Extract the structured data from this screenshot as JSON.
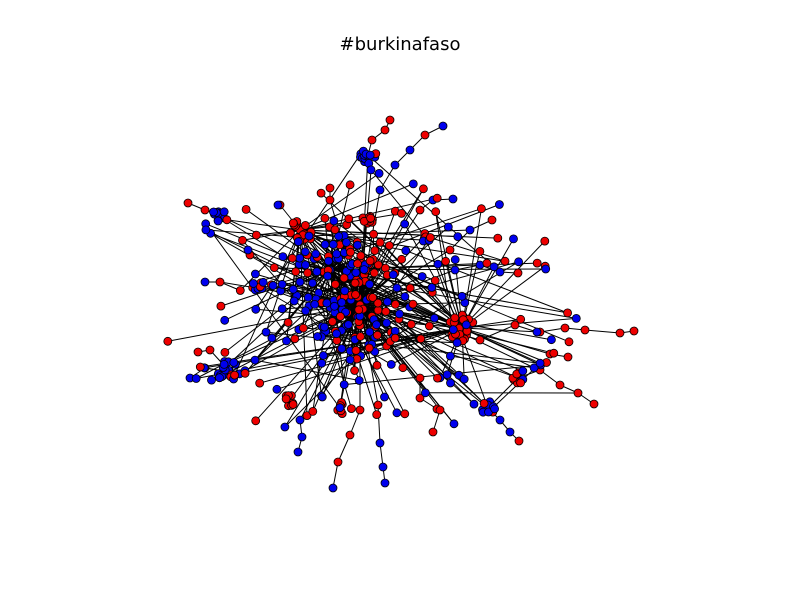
{
  "figure": {
    "title": "#burkinafaso"
  },
  "legend_colors": {
    "group_a": "#0000ee",
    "group_b": "#ee0000",
    "edge": "#000000",
    "node_outline": "#000000"
  },
  "graph": {
    "seed": 7,
    "hub_count": 14,
    "node_count_estimate": 520,
    "groups": [
      "blue",
      "red"
    ]
  }
}
